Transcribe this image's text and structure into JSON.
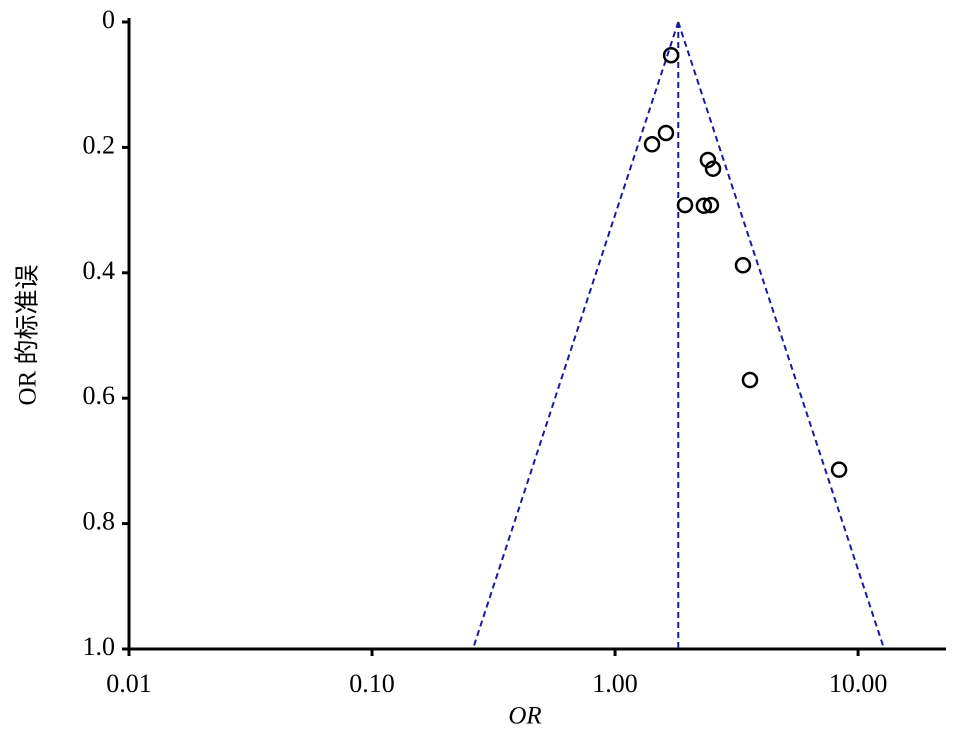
{
  "chart_data": {
    "type": "scatter",
    "x_label": "OR",
    "y_label": "OR 的标准误",
    "x_log_scale": true,
    "y_inverted": true,
    "x": [
      1.7,
      1.62,
      1.42,
      2.41,
      2.53,
      1.94,
      2.32,
      2.48,
      3.36,
      3.59,
      8.35
    ],
    "values": [
      0.053,
      0.177,
      0.195,
      0.22,
      0.234,
      0.292,
      0.293,
      0.292,
      0.388,
      0.571,
      0.714
    ],
    "color": "#000000",
    "pooled_or": 1.82,
    "funnel_limits": [
      0.26,
      12.8
    ],
    "funnel_color": "#1a1aa0",
    "xlim": [
      0.01,
      23
    ],
    "ylim": [
      0,
      1
    ],
    "xticks": [
      0.01,
      {
        "value": 0.1,
        "label": "0.10"
      },
      {
        "value": 1,
        "label": "1.00"
      },
      {
        "value": 10,
        "label": "10.00"
      }
    ],
    "yticks": [
      0,
      0.2,
      0.4,
      0.6,
      0.8,
      {
        "value": 1,
        "label": "1.0"
      }
    ]
  }
}
